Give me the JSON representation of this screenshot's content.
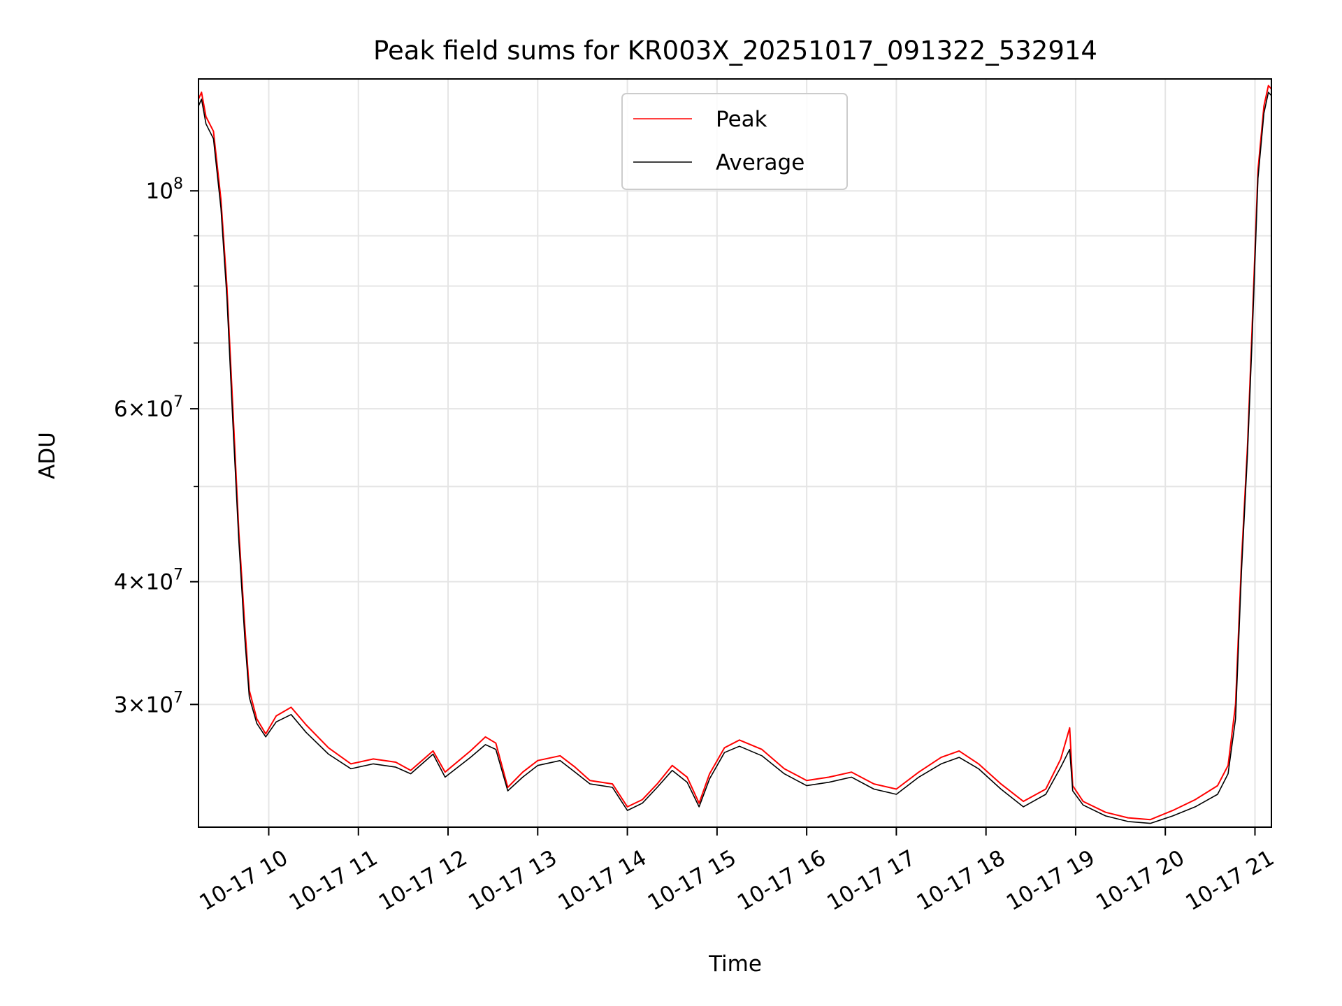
{
  "chart_data": {
    "type": "line",
    "title": "Peak field sums for KR003X_20251017_091322_532914",
    "xlabel": "Time",
    "ylabel": "ADU",
    "y_scale": "log",
    "ylim": [
      22500000,
      130000000
    ],
    "xlim": [
      "2025-10-17 09:13",
      "2025-10-17 21:11"
    ],
    "grid": true,
    "legend_position": "top-center",
    "x_ticks": [
      {
        "t": "2025-10-17 10:00",
        "label": "10-17 10"
      },
      {
        "t": "2025-10-17 11:00",
        "label": "10-17 11"
      },
      {
        "t": "2025-10-17 12:00",
        "label": "10-17 12"
      },
      {
        "t": "2025-10-17 13:00",
        "label": "10-17 13"
      },
      {
        "t": "2025-10-17 14:00",
        "label": "10-17 14"
      },
      {
        "t": "2025-10-17 15:00",
        "label": "10-17 15"
      },
      {
        "t": "2025-10-17 16:00",
        "label": "10-17 16"
      },
      {
        "t": "2025-10-17 17:00",
        "label": "10-17 17"
      },
      {
        "t": "2025-10-17 18:00",
        "label": "10-17 18"
      },
      {
        "t": "2025-10-17 19:00",
        "label": "10-17 19"
      },
      {
        "t": "2025-10-17 20:00",
        "label": "10-17 20"
      },
      {
        "t": "2025-10-17 21:00",
        "label": "10-17 21"
      }
    ],
    "y_ticks": [
      {
        "value": 30000000,
        "mantissa": "3",
        "exponent": "7",
        "times": "×",
        "base": "10"
      },
      {
        "value": 40000000,
        "mantissa": "4",
        "exponent": "7",
        "times": "×",
        "base": "10"
      },
      {
        "value": 60000000,
        "mantissa": "6",
        "exponent": "7",
        "times": "×",
        "base": "10"
      },
      {
        "value": 100000000,
        "mantissa": "",
        "exponent": "8",
        "times": "",
        "base": "10"
      }
    ],
    "y_minor_ticks": [
      50000000,
      70000000,
      80000000,
      90000000
    ],
    "series": [
      {
        "name": "Peak",
        "color": "#ff0000",
        "points": [
          [
            "2025-10-17 09:13",
            124000000
          ],
          [
            "2025-10-17 09:15",
            126000000
          ],
          [
            "2025-10-17 09:18",
            119000000
          ],
          [
            "2025-10-17 09:23",
            115000000
          ],
          [
            "2025-10-17 09:28",
            98000000
          ],
          [
            "2025-10-17 09:32",
            80000000
          ],
          [
            "2025-10-17 09:36",
            60000000
          ],
          [
            "2025-10-17 09:40",
            45000000
          ],
          [
            "2025-10-17 09:44",
            36000000
          ],
          [
            "2025-10-17 09:47",
            31000000
          ],
          [
            "2025-10-17 09:52",
            29000000
          ],
          [
            "2025-10-17 09:58",
            28000000
          ],
          [
            "2025-10-17 10:05",
            29200000
          ],
          [
            "2025-10-17 10:15",
            29800000
          ],
          [
            "2025-10-17 10:25",
            28600000
          ],
          [
            "2025-10-17 10:40",
            27100000
          ],
          [
            "2025-10-17 10:55",
            26100000
          ],
          [
            "2025-10-17 11:10",
            26400000
          ],
          [
            "2025-10-17 11:25",
            26200000
          ],
          [
            "2025-10-17 11:35",
            25700000
          ],
          [
            "2025-10-17 11:50",
            26900000
          ],
          [
            "2025-10-17 11:58",
            25600000
          ],
          [
            "2025-10-17 12:15",
            26900000
          ],
          [
            "2025-10-17 12:25",
            27800000
          ],
          [
            "2025-10-17 12:32",
            27400000
          ],
          [
            "2025-10-17 12:40",
            24700000
          ],
          [
            "2025-10-17 12:50",
            25600000
          ],
          [
            "2025-10-17 13:00",
            26300000
          ],
          [
            "2025-10-17 13:15",
            26600000
          ],
          [
            "2025-10-17 13:25",
            25900000
          ],
          [
            "2025-10-17 13:35",
            25100000
          ],
          [
            "2025-10-17 13:50",
            24900000
          ],
          [
            "2025-10-17 14:00",
            23600000
          ],
          [
            "2025-10-17 14:10",
            24000000
          ],
          [
            "2025-10-17 14:20",
            24900000
          ],
          [
            "2025-10-17 14:30",
            26000000
          ],
          [
            "2025-10-17 14:40",
            25300000
          ],
          [
            "2025-10-17 14:48",
            23800000
          ],
          [
            "2025-10-17 14:55",
            25500000
          ],
          [
            "2025-10-17 15:05",
            27100000
          ],
          [
            "2025-10-17 15:15",
            27600000
          ],
          [
            "2025-10-17 15:30",
            27000000
          ],
          [
            "2025-10-17 15:45",
            25800000
          ],
          [
            "2025-10-17 16:00",
            25100000
          ],
          [
            "2025-10-17 16:15",
            25300000
          ],
          [
            "2025-10-17 16:30",
            25600000
          ],
          [
            "2025-10-17 16:45",
            24900000
          ],
          [
            "2025-10-17 17:00",
            24600000
          ],
          [
            "2025-10-17 17:15",
            25600000
          ],
          [
            "2025-10-17 17:30",
            26500000
          ],
          [
            "2025-10-17 17:42",
            26900000
          ],
          [
            "2025-10-17 17:55",
            26100000
          ],
          [
            "2025-10-17 18:10",
            24900000
          ],
          [
            "2025-10-17 18:25",
            23900000
          ],
          [
            "2025-10-17 18:40",
            24600000
          ],
          [
            "2025-10-17 18:50",
            26400000
          ],
          [
            "2025-10-17 18:56",
            28400000
          ],
          [
            "2025-10-17 18:58",
            24800000
          ],
          [
            "2025-10-17 19:05",
            23900000
          ],
          [
            "2025-10-17 19:20",
            23300000
          ],
          [
            "2025-10-17 19:35",
            23000000
          ],
          [
            "2025-10-17 19:50",
            22900000
          ],
          [
            "2025-10-17 20:05",
            23400000
          ],
          [
            "2025-10-17 20:20",
            24000000
          ],
          [
            "2025-10-17 20:35",
            24800000
          ],
          [
            "2025-10-17 20:42",
            26000000
          ],
          [
            "2025-10-17 20:47",
            30000000
          ],
          [
            "2025-10-17 20:51",
            42000000
          ],
          [
            "2025-10-17 20:55",
            55000000
          ],
          [
            "2025-10-17 20:58",
            72000000
          ],
          [
            "2025-10-17 21:02",
            105000000
          ],
          [
            "2025-10-17 21:06",
            122000000
          ],
          [
            "2025-10-17 21:09",
            128000000
          ],
          [
            "2025-10-17 21:11",
            127000000
          ]
        ]
      },
      {
        "name": "Average",
        "color": "#000000",
        "points": [
          [
            "2025-10-17 09:13",
            122000000
          ],
          [
            "2025-10-17 09:15",
            124000000
          ],
          [
            "2025-10-17 09:18",
            117000000
          ],
          [
            "2025-10-17 09:23",
            113000000
          ],
          [
            "2025-10-17 09:28",
            96000000
          ],
          [
            "2025-10-17 09:32",
            78000000
          ],
          [
            "2025-10-17 09:36",
            58000000
          ],
          [
            "2025-10-17 09:40",
            44000000
          ],
          [
            "2025-10-17 09:44",
            35000000
          ],
          [
            "2025-10-17 09:47",
            30500000
          ],
          [
            "2025-10-17 09:52",
            28700000
          ],
          [
            "2025-10-17 09:58",
            27800000
          ],
          [
            "2025-10-17 10:05",
            28800000
          ],
          [
            "2025-10-17 10:15",
            29300000
          ],
          [
            "2025-10-17 10:25",
            28100000
          ],
          [
            "2025-10-17 10:40",
            26700000
          ],
          [
            "2025-10-17 10:55",
            25800000
          ],
          [
            "2025-10-17 11:10",
            26100000
          ],
          [
            "2025-10-17 11:25",
            25900000
          ],
          [
            "2025-10-17 11:35",
            25500000
          ],
          [
            "2025-10-17 11:50",
            26700000
          ],
          [
            "2025-10-17 11:58",
            25300000
          ],
          [
            "2025-10-17 12:15",
            26500000
          ],
          [
            "2025-10-17 12:25",
            27300000
          ],
          [
            "2025-10-17 12:32",
            27000000
          ],
          [
            "2025-10-17 12:40",
            24500000
          ],
          [
            "2025-10-17 12:50",
            25300000
          ],
          [
            "2025-10-17 13:00",
            26000000
          ],
          [
            "2025-10-17 13:15",
            26300000
          ],
          [
            "2025-10-17 13:25",
            25600000
          ],
          [
            "2025-10-17 13:35",
            24900000
          ],
          [
            "2025-10-17 13:50",
            24700000
          ],
          [
            "2025-10-17 14:00",
            23400000
          ],
          [
            "2025-10-17 14:10",
            23800000
          ],
          [
            "2025-10-17 14:20",
            24700000
          ],
          [
            "2025-10-17 14:30",
            25700000
          ],
          [
            "2025-10-17 14:40",
            25000000
          ],
          [
            "2025-10-17 14:48",
            23600000
          ],
          [
            "2025-10-17 14:55",
            25200000
          ],
          [
            "2025-10-17 15:05",
            26800000
          ],
          [
            "2025-10-17 15:15",
            27200000
          ],
          [
            "2025-10-17 15:30",
            26600000
          ],
          [
            "2025-10-17 15:45",
            25500000
          ],
          [
            "2025-10-17 16:00",
            24800000
          ],
          [
            "2025-10-17 16:15",
            25000000
          ],
          [
            "2025-10-17 16:30",
            25300000
          ],
          [
            "2025-10-17 16:45",
            24600000
          ],
          [
            "2025-10-17 17:00",
            24300000
          ],
          [
            "2025-10-17 17:15",
            25300000
          ],
          [
            "2025-10-17 17:30",
            26100000
          ],
          [
            "2025-10-17 17:42",
            26500000
          ],
          [
            "2025-10-17 17:55",
            25800000
          ],
          [
            "2025-10-17 18:10",
            24600000
          ],
          [
            "2025-10-17 18:25",
            23600000
          ],
          [
            "2025-10-17 18:40",
            24300000
          ],
          [
            "2025-10-17 18:50",
            25900000
          ],
          [
            "2025-10-17 18:56",
            27000000
          ],
          [
            "2025-10-17 18:58",
            24500000
          ],
          [
            "2025-10-17 19:05",
            23700000
          ],
          [
            "2025-10-17 19:20",
            23100000
          ],
          [
            "2025-10-17 19:35",
            22800000
          ],
          [
            "2025-10-17 19:50",
            22700000
          ],
          [
            "2025-10-17 20:05",
            23100000
          ],
          [
            "2025-10-17 20:20",
            23600000
          ],
          [
            "2025-10-17 20:35",
            24300000
          ],
          [
            "2025-10-17 20:42",
            25500000
          ],
          [
            "2025-10-17 20:47",
            29000000
          ],
          [
            "2025-10-17 20:51",
            41000000
          ],
          [
            "2025-10-17 20:55",
            54000000
          ],
          [
            "2025-10-17 20:58",
            70000000
          ],
          [
            "2025-10-17 21:02",
            103000000
          ],
          [
            "2025-10-17 21:06",
            120000000
          ],
          [
            "2025-10-17 21:09",
            126000000
          ],
          [
            "2025-10-17 21:11",
            125000000
          ]
        ]
      }
    ]
  }
}
